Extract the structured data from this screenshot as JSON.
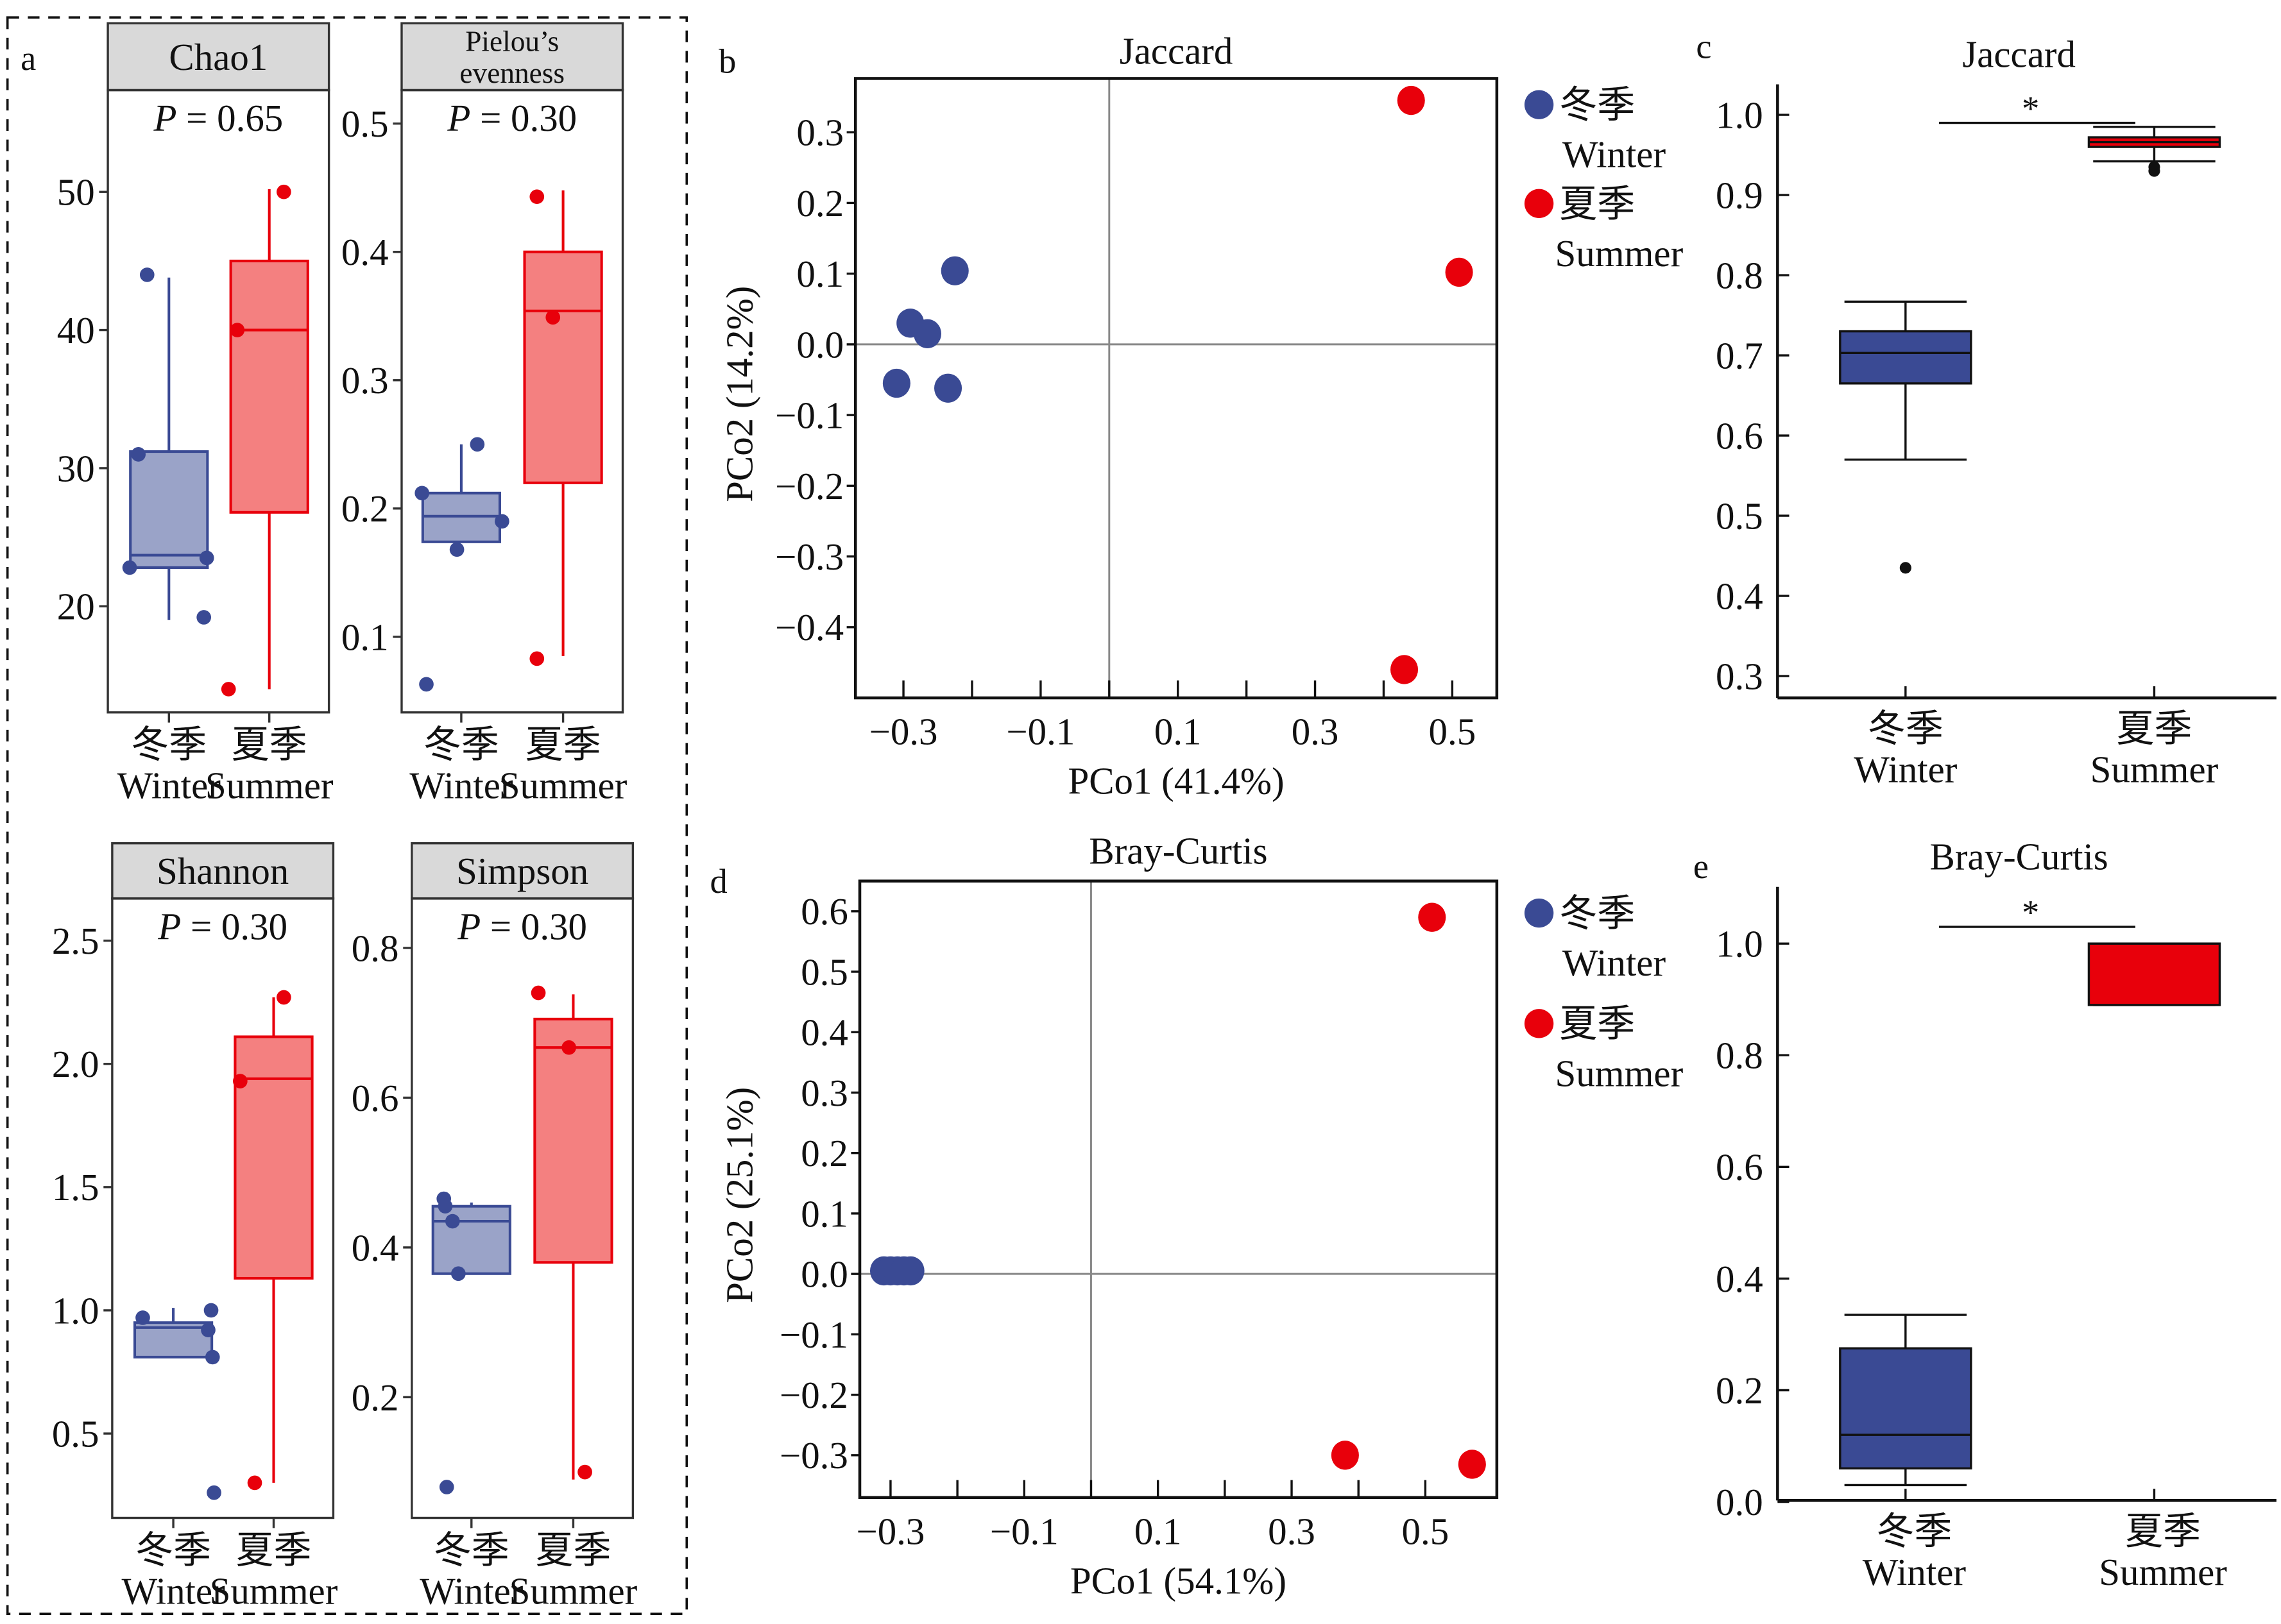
{
  "colors": {
    "winter": "#3a4a94",
    "winter_fill": "#9aa3c8",
    "summer": "#e8000b",
    "summer_fill": "#f48080",
    "strip": "#d9d9d9",
    "zero_line": "#888888"
  },
  "legend": [
    {
      "zh": "冬季",
      "en": "Winter",
      "color": "#3a4a94"
    },
    {
      "zh": "夏季",
      "en": "Summer",
      "color": "#e8000b"
    }
  ],
  "chart_data": [
    {
      "panel": "a",
      "type": "box",
      "title": "Chao1",
      "annotation": {
        "symbol": "P",
        "text": " = 0.65"
      },
      "categories": [
        {
          "zh": "冬季",
          "en": "Winter"
        },
        {
          "zh": "夏季",
          "en": "Summer"
        }
      ],
      "yticks": [
        "20",
        "30",
        "40",
        "50"
      ],
      "groups": [
        {
          "q1": 22.8,
          "median": 23.7,
          "q3": 31.2,
          "whisker_low": 19,
          "whisker_high": 43.8,
          "points": [
            44,
            31,
            23.5,
            22.8,
            19.2
          ]
        },
        {
          "q1": 26.8,
          "median": 40,
          "q3": 45,
          "whisker_low": 14,
          "whisker_high": 50.2,
          "points": [
            50,
            40,
            14
          ]
        }
      ]
    },
    {
      "panel": "a",
      "type": "box",
      "title": [
        "Pielou’s",
        "evenness"
      ],
      "annotation": {
        "symbol": "P",
        "text": " = 0.30"
      },
      "categories": [
        {
          "zh": "冬季",
          "en": "Winter"
        },
        {
          "zh": "夏季",
          "en": "Summer"
        }
      ],
      "yticks": [
        "0.1",
        "0.2",
        "0.3",
        "0.4",
        "0.5"
      ],
      "groups": [
        {
          "q1": 0.174,
          "median": 0.194,
          "q3": 0.212,
          "whisker_low": 0.174,
          "whisker_high": 0.25,
          "points": [
            0.212,
            0.25,
            0.19,
            0.168,
            0.063
          ]
        },
        {
          "q1": 0.22,
          "median": 0.354,
          "q3": 0.4,
          "whisker_low": 0.085,
          "whisker_high": 0.448,
          "points": [
            0.443,
            0.349,
            0.083
          ]
        }
      ]
    },
    {
      "panel": "a",
      "type": "box",
      "title": "Shannon",
      "annotation": {
        "symbol": "P",
        "text": " = 0.30"
      },
      "categories": [
        {
          "zh": "冬季",
          "en": "Winter"
        },
        {
          "zh": "夏季",
          "en": "Summer"
        }
      ],
      "yticks": [
        "0.5",
        "1.0",
        "1.5",
        "2.0",
        "2.5"
      ],
      "groups": [
        {
          "q1": 0.81,
          "median": 0.93,
          "q3": 0.95,
          "whisker_low": 0.81,
          "whisker_high": 1.01,
          "points": [
            0.97,
            1.0,
            0.92,
            0.81,
            0.26
          ]
        },
        {
          "q1": 1.13,
          "median": 1.94,
          "q3": 2.11,
          "whisker_low": 0.3,
          "whisker_high": 2.27,
          "points": [
            2.27,
            1.93,
            0.3
          ]
        }
      ]
    },
    {
      "panel": "a",
      "type": "box",
      "title": "Simpson",
      "annotation": {
        "symbol": "P",
        "text": " = 0.30"
      },
      "categories": [
        {
          "zh": "冬季",
          "en": "Winter"
        },
        {
          "zh": "夏季",
          "en": "Summer"
        }
      ],
      "yticks": [
        "0.2",
        "0.4",
        "0.6",
        "0.8"
      ],
      "groups": [
        {
          "q1": 0.365,
          "median": 0.435,
          "q3": 0.455,
          "whisker_low": 0.365,
          "whisker_high": 0.46,
          "points": [
            0.465,
            0.455,
            0.435,
            0.365,
            0.08
          ]
        },
        {
          "q1": 0.38,
          "median": 0.667,
          "q3": 0.705,
          "whisker_low": 0.09,
          "whisker_high": 0.738,
          "points": [
            0.74,
            0.667,
            0.1
          ]
        }
      ]
    },
    {
      "panel": "b",
      "type": "scatter",
      "title": "Jaccard",
      "xlabel": "PCo1 (41.4%)",
      "ylabel": "PCo2 (14.2%)",
      "xlim": [
        -0.37,
        0.565
      ],
      "ylim": [
        -0.5,
        0.376
      ],
      "xticks": [
        "−0.3",
        "−0.1",
        "0.1",
        "0.3",
        "0.5"
      ],
      "yticks": [
        "−0.4",
        "−0.3",
        "−0.2",
        "−0.1",
        "0.0",
        "0.1",
        "0.2",
        "0.3"
      ],
      "series": [
        {
          "group": 0,
          "points": [
            [
              -0.31,
              -0.055
            ],
            [
              -0.29,
              0.03
            ],
            [
              -0.265,
              0.015
            ],
            [
              -0.235,
              -0.062
            ],
            [
              -0.225,
              0.104
            ]
          ]
        },
        {
          "group": 1,
          "points": [
            [
              0.44,
              0.345
            ],
            [
              0.51,
              0.102
            ],
            [
              0.43,
              -0.46
            ]
          ]
        }
      ]
    },
    {
      "panel": "c",
      "type": "box",
      "title": "Jaccard",
      "categories": [
        {
          "zh": "冬季",
          "en": "Winter"
        },
        {
          "zh": "夏季",
          "en": "Summer"
        }
      ],
      "yticks": [
        "0.3",
        "0.4",
        "0.5",
        "0.6",
        "0.7",
        "0.8",
        "0.9",
        "1.0"
      ],
      "significance": "*",
      "groups": [
        {
          "q1": 0.665,
          "median": 0.703,
          "q3": 0.73,
          "whisker_low": 0.57,
          "whisker_high": 0.767,
          "outliers": [
            0.435
          ]
        },
        {
          "q1": 0.96,
          "median": 0.966,
          "q3": 0.972,
          "whisker_low": 0.942,
          "whisker_high": 0.985,
          "outliers": [
            0.93,
            0.935
          ]
        }
      ]
    },
    {
      "panel": "d",
      "type": "scatter",
      "title": "Bray-Curtis",
      "xlabel": "PCo1 (54.1%)",
      "ylabel": "PCo2 (25.1%)",
      "xlim": [
        -0.346,
        0.607
      ],
      "ylim": [
        -0.37,
        0.65
      ],
      "xticks": [
        "−0.3",
        "−0.1",
        "0.1",
        "0.3",
        "0.5"
      ],
      "yticks": [
        "−0.3",
        "−0.2",
        "−0.1",
        "0.0",
        "0.1",
        "0.2",
        "0.3",
        "0.4",
        "0.5",
        "0.6"
      ],
      "series": [
        {
          "group": 0,
          "points": [
            [
              -0.31,
              0.005
            ],
            [
              -0.3,
              0.005
            ],
            [
              -0.29,
              0.005
            ],
            [
              -0.28,
              0.005
            ],
            [
              -0.27,
              0.005
            ]
          ]
        },
        {
          "group": 1,
          "points": [
            [
              0.51,
              0.59
            ],
            [
              0.38,
              -0.3
            ],
            [
              0.57,
              -0.315
            ]
          ]
        }
      ]
    },
    {
      "panel": "e",
      "type": "box",
      "title": "Bray-Curtis",
      "categories": [
        {
          "zh": "冬季",
          "en": "Winter"
        },
        {
          "zh": "夏季",
          "en": "Summer"
        }
      ],
      "yticks": [
        "0.0",
        "0.2",
        "0.4",
        "0.6",
        "0.8",
        "1.0"
      ],
      "significance": "*",
      "groups": [
        {
          "q1": 0.06,
          "median": 0.12,
          "q3": 0.275,
          "whisker_low": 0.03,
          "whisker_high": 0.335,
          "outliers": []
        },
        {
          "q1": 0.89,
          "median": 1.0,
          "q3": 1.0,
          "whisker_low": 0.89,
          "whisker_high": 1.0,
          "outliers": []
        }
      ]
    }
  ]
}
